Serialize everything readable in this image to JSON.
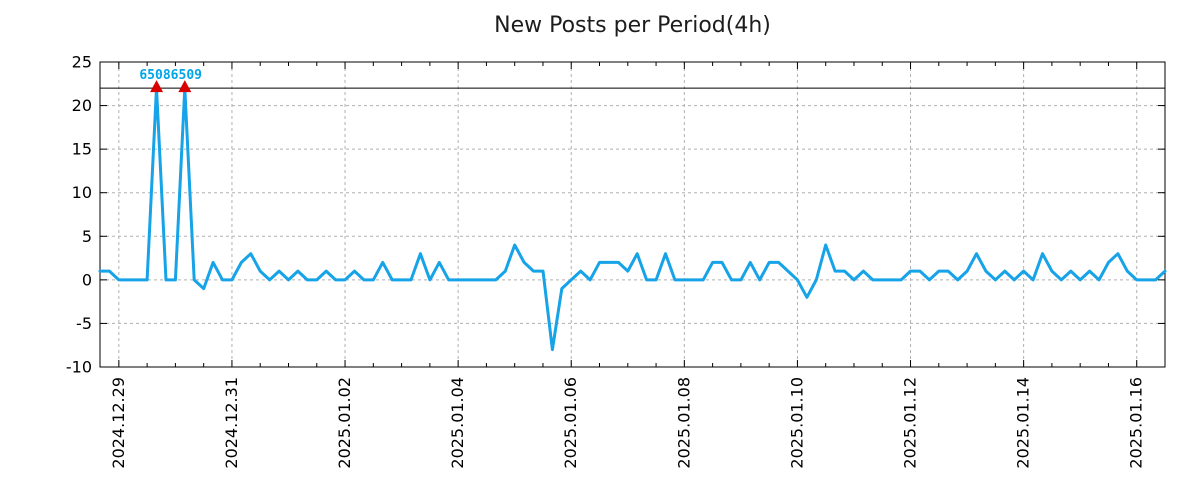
{
  "chart_data": {
    "type": "line",
    "title": "New Posts per Period(4h)",
    "period_hours": 4,
    "grid": "dashed",
    "legend": "none",
    "ylim": [
      -10,
      25
    ],
    "y_ticks": [
      25,
      20,
      15,
      10,
      5,
      0,
      -5,
      -10
    ],
    "y_tick_labels": [
      "25",
      "20",
      "15",
      "10",
      "5",
      "0",
      "-5",
      "-10"
    ],
    "x_tick_labels": [
      "2024.12.29",
      "2024.12.31",
      "2025.01.02",
      "2025.01.04",
      "2025.01.06",
      "2025.01.08",
      "2025.01.10",
      "2025.01.12",
      "2025.01.14",
      "2025.01.16"
    ],
    "x_tick_indices": [
      2,
      14,
      26,
      38,
      50,
      62,
      74,
      86,
      98,
      110
    ],
    "x_minor_tick_every_points": 3,
    "x_start_estimate": "2024-12-28 16:00",
    "x_step_hours": 4,
    "series_color": "#16a3e8",
    "axis_color": "#000000",
    "grid_color": "#b0b0b0",
    "values": [
      1,
      1,
      0,
      0,
      0,
      0,
      22,
      0,
      0,
      22,
      0,
      -1,
      2,
      0,
      0,
      2,
      3,
      1,
      0,
      1,
      0,
      1,
      0,
      0,
      1,
      0,
      0,
      1,
      0,
      0,
      2,
      0,
      0,
      0,
      3,
      0,
      2,
      0,
      0,
      0,
      0,
      0,
      0,
      1,
      4,
      2,
      1,
      1,
      -8,
      -1,
      0,
      1,
      0,
      2,
      2,
      2,
      1,
      3,
      0,
      0,
      3,
      0,
      0,
      0,
      0,
      2,
      2,
      0,
      0,
      2,
      0,
      2,
      2,
      1,
      0,
      -2,
      0,
      4,
      1,
      1,
      0,
      1,
      0,
      0,
      0,
      0,
      1,
      1,
      0,
      1,
      1,
      0,
      1,
      3,
      1,
      0,
      1,
      0,
      1,
      0,
      3,
      1,
      0,
      1,
      0,
      1,
      0,
      2,
      3,
      1,
      0,
      0,
      0,
      1
    ],
    "annotation": {
      "text": "65086509",
      "text_color": "#00a6e8",
      "marker_indices": [
        6,
        9
      ],
      "marker_value": 22,
      "marker_color": "#d90000",
      "hline_value": 22,
      "hline_color": "#000000"
    }
  }
}
